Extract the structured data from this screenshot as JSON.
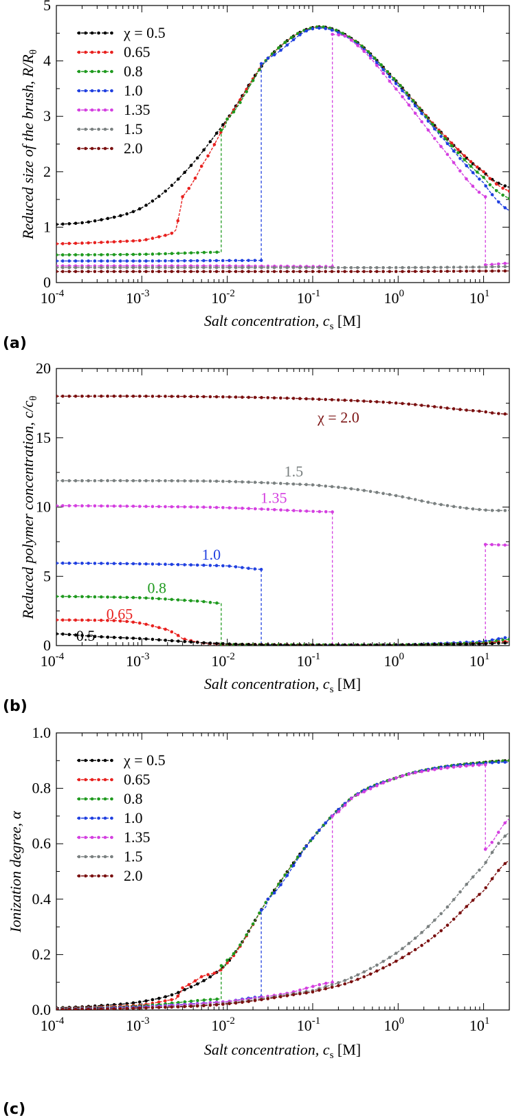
{
  "colors": {
    "0.5": "#000000",
    "0.65": "#e8211f",
    "0.8": "#1f9a1f",
    "1.0": "#2040e0",
    "1.35": "#d43fe0",
    "1.5": "#7a8080",
    "2.0": "#7a1010"
  },
  "x_tick_labels": [
    "10",
    "10",
    "10",
    "10",
    "10"
  ],
  "x_tick_exponents": [
    "-4",
    "-3",
    "-2",
    "-1",
    "0",
    "1"
  ],
  "xlabel": {
    "main": "Salt concentration, ",
    "var": "c",
    "sub": "s",
    "unit": " [M]"
  },
  "chart_data": [
    {
      "panel": "(a)",
      "type": "line",
      "xscale": "log",
      "xlim": [
        0.0001,
        20
      ],
      "ylim": [
        0,
        5
      ],
      "yticks": [
        "0",
        "1",
        "2",
        "3",
        "4",
        "5"
      ],
      "ylabel": "Reduced size of the brush, R/R",
      "ylabel_sub": "θ",
      "legend": [
        "χ = 0.5",
        "0.65",
        "0.8",
        "1.0",
        "1.35",
        "1.5",
        "2.0"
      ],
      "legend_position": "top-left",
      "series": [
        {
          "name": "χ = 0.5",
          "key": "0.5",
          "x": [
            0.0001,
            0.0003,
            0.001,
            0.003,
            0.01,
            0.03,
            0.1,
            0.3,
            1,
            3,
            10,
            20
          ],
          "y": [
            1.05,
            1.12,
            1.35,
            1.95,
            2.95,
            4.05,
            4.6,
            4.38,
            3.6,
            2.75,
            2.0,
            1.72
          ]
        },
        {
          "name": "0.65",
          "key": "0.65",
          "x": [
            0.0001,
            0.001,
            0.002,
            0.0025,
            0.0028,
            0.003,
            0.005,
            0.01,
            0.03,
            0.1,
            0.3,
            1,
            3,
            10,
            20
          ],
          "y": [
            0.7,
            0.76,
            0.86,
            0.95,
            1.3,
            1.55,
            2.1,
            2.95,
            4.05,
            4.6,
            4.38,
            3.6,
            2.75,
            2.0,
            1.65
          ]
        },
        {
          "name": "0.8",
          "key": "0.8",
          "segments": [
            {
              "x": [
                0.0001,
                0.001,
                0.0085
              ],
              "y": [
                0.5,
                0.51,
                0.55
              ]
            },
            {
              "x": [
                0.0085,
                0.01,
                0.03,
                0.1,
                0.3,
                1,
                3,
                10,
                20
              ],
              "y": [
                2.75,
                2.95,
                4.05,
                4.6,
                4.38,
                3.6,
                2.72,
                1.9,
                1.52
              ]
            }
          ],
          "jumps": [
            0.0085
          ]
        },
        {
          "name": "1.0",
          "key": "1.0",
          "segments": [
            {
              "x": [
                0.0001,
                0.001,
                0.025
              ],
              "y": [
                0.39,
                0.39,
                0.4
              ]
            },
            {
              "x": [
                0.025,
                0.03,
                0.1,
                0.3,
                1,
                3,
                10,
                20
              ],
              "y": [
                3.95,
                4.05,
                4.58,
                4.35,
                3.55,
                2.68,
                1.8,
                1.3
              ]
            }
          ],
          "jumps": [
            0.025
          ]
        },
        {
          "name": "1.35",
          "key": "1.35",
          "segments": [
            {
              "x": [
                0.0001,
                0.01,
                0.17
              ],
              "y": [
                0.3,
                0.3,
                0.29
              ]
            },
            {
              "x": [
                0.17,
                0.3,
                1,
                3,
                10.5
              ],
              "y": [
                4.48,
                4.33,
                3.45,
                2.5,
                1.55
              ]
            },
            {
              "x": [
                10.5,
                20
              ],
              "y": [
                0.32,
                0.35
              ]
            }
          ],
          "jumps": [
            0.17,
            10.5
          ]
        },
        {
          "name": "1.5",
          "key": "1.5",
          "x": [
            0.0001,
            0.01,
            0.1,
            1,
            10,
            20
          ],
          "y": [
            0.27,
            0.27,
            0.27,
            0.27,
            0.28,
            0.29
          ]
        },
        {
          "name": "2.0",
          "key": "2.0",
          "x": [
            0.0001,
            0.01,
            1,
            20
          ],
          "y": [
            0.2,
            0.2,
            0.2,
            0.21
          ]
        }
      ]
    },
    {
      "panel": "(b)",
      "type": "line",
      "xscale": "log",
      "xlim": [
        0.0001,
        20
      ],
      "ylim": [
        0,
        20
      ],
      "yticks": [
        "0",
        "5",
        "10",
        "15",
        "20"
      ],
      "ylabel": "Reduced polymer concentration, c/c",
      "ylabel_sub": "θ",
      "inline_labels": [
        {
          "text": "χ = 2.0",
          "key": "2.0",
          "x": 0.2,
          "y": 16.1
        },
        {
          "text": "1.5",
          "key": "1.5",
          "x": 0.06,
          "y": 12.2
        },
        {
          "text": "1.35",
          "key": "1.35",
          "x": 0.035,
          "y": 10.3
        },
        {
          "text": "1.0",
          "key": "1.0",
          "x": 0.0065,
          "y": 6.2
        },
        {
          "text": "0.8",
          "key": "0.8",
          "x": 0.0015,
          "y": 3.8
        },
        {
          "text": "0.65",
          "key": "0.65",
          "x": 0.00055,
          "y": 1.9
        },
        {
          "text": "0.5",
          "key": "0.5",
          "x": 0.00022,
          "y": 0.35
        }
      ],
      "series": [
        {
          "name": "2.0",
          "key": "2.0",
          "x": [
            0.0001,
            0.001,
            0.01,
            0.1,
            1,
            10,
            20
          ],
          "y": [
            18.0,
            18.0,
            17.95,
            17.8,
            17.5,
            16.9,
            16.7
          ]
        },
        {
          "name": "1.5",
          "key": "1.5",
          "x": [
            0.0001,
            0.001,
            0.01,
            0.1,
            0.3,
            1,
            3,
            10,
            20
          ],
          "y": [
            11.9,
            11.9,
            11.85,
            11.6,
            11.3,
            10.8,
            10.2,
            9.8,
            9.75
          ]
        },
        {
          "name": "1.35",
          "key": "1.35",
          "segments": [
            {
              "x": [
                0.0001,
                0.001,
                0.01,
                0.17
              ],
              "y": [
                10.1,
                10.05,
                9.95,
                9.65
              ]
            },
            {
              "x": [
                0.17,
                1,
                10.5
              ],
              "y": [
                0.05,
                0.06,
                0.15
              ]
            },
            {
              "x": [
                10.5,
                20
              ],
              "y": [
                7.3,
                7.25
              ]
            }
          ],
          "jumps": [
            0.17,
            10.5
          ]
        },
        {
          "name": "1.0",
          "key": "1.0",
          "segments": [
            {
              "x": [
                0.0001,
                0.001,
                0.01,
                0.025
              ],
              "y": [
                5.95,
                5.9,
                5.75,
                5.5
              ]
            },
            {
              "x": [
                0.025,
                0.1,
                1,
                10,
                20
              ],
              "y": [
                0.06,
                0.05,
                0.05,
                0.3,
                0.6
              ]
            }
          ],
          "jumps": [
            0.025
          ]
        },
        {
          "name": "0.8",
          "key": "0.8",
          "segments": [
            {
              "x": [
                0.0001,
                0.001,
                0.005,
                0.0085
              ],
              "y": [
                3.55,
                3.45,
                3.2,
                3.05
              ]
            },
            {
              "x": [
                0.0085,
                0.1,
                1,
                10,
                20
              ],
              "y": [
                0.08,
                0.05,
                0.05,
                0.2,
                0.45
              ]
            }
          ],
          "jumps": [
            0.0085
          ]
        },
        {
          "name": "0.65",
          "key": "0.65",
          "x": [
            0.0001,
            0.0005,
            0.001,
            0.002,
            0.0025,
            0.003,
            0.005,
            0.01,
            0.1,
            1,
            10,
            20
          ],
          "y": [
            1.85,
            1.8,
            1.6,
            1.15,
            0.85,
            0.5,
            0.2,
            0.1,
            0.05,
            0.05,
            0.15,
            0.3
          ]
        },
        {
          "name": "0.5",
          "key": "0.5",
          "x": [
            0.0001,
            0.0003,
            0.001,
            0.003,
            0.01,
            0.03,
            0.1,
            1,
            10,
            20
          ],
          "y": [
            0.85,
            0.65,
            0.5,
            0.3,
            0.12,
            0.06,
            0.04,
            0.05,
            0.12,
            0.2
          ]
        }
      ]
    },
    {
      "panel": "(c)",
      "type": "line",
      "xscale": "log",
      "xlim": [
        0.0001,
        20
      ],
      "ylim": [
        0,
        1.0
      ],
      "yticks": [
        "0.0",
        "0.2",
        "0.4",
        "0.6",
        "0.8",
        "1.0"
      ],
      "ylabel": "Ionization degree, α",
      "legend": [
        "χ = 0.5",
        "0.65",
        "0.8",
        "1.0",
        "1.35",
        "1.5",
        "2.0"
      ],
      "legend_position": "top-left",
      "series": [
        {
          "name": "χ = 0.5",
          "key": "0.5",
          "x": [
            0.0001,
            0.0003,
            0.001,
            0.003,
            0.01,
            0.03,
            0.1,
            0.3,
            1,
            3,
            10,
            20
          ],
          "y": [
            0.008,
            0.015,
            0.03,
            0.07,
            0.17,
            0.4,
            0.62,
            0.77,
            0.84,
            0.875,
            0.893,
            0.9
          ]
        },
        {
          "name": "0.65",
          "key": "0.65",
          "x": [
            0.0001,
            0.001,
            0.0025,
            0.0028,
            0.003,
            0.005,
            0.01,
            0.03,
            0.1,
            0.3,
            1,
            3,
            10,
            20
          ],
          "y": [
            0.006,
            0.018,
            0.04,
            0.06,
            0.08,
            0.12,
            0.17,
            0.4,
            0.62,
            0.77,
            0.84,
            0.875,
            0.893,
            0.9
          ]
        },
        {
          "name": "0.8",
          "key": "0.8",
          "segments": [
            {
              "x": [
                0.0001,
                0.001,
                0.0085
              ],
              "y": [
                0.005,
                0.015,
                0.04
              ]
            },
            {
              "x": [
                0.0085,
                0.01,
                0.03,
                0.1,
                0.3,
                1,
                3,
                10,
                20
              ],
              "y": [
                0.16,
                0.18,
                0.4,
                0.62,
                0.77,
                0.84,
                0.875,
                0.893,
                0.9
              ]
            }
          ],
          "jumps": [
            0.0085
          ]
        },
        {
          "name": "1.0",
          "key": "1.0",
          "segments": [
            {
              "x": [
                0.0001,
                0.001,
                0.01,
                0.025
              ],
              "y": [
                0.004,
                0.012,
                0.03,
                0.048
              ]
            },
            {
              "x": [
                0.025,
                0.03,
                0.1,
                0.3,
                1,
                3,
                10,
                20
              ],
              "y": [
                0.36,
                0.4,
                0.62,
                0.77,
                0.84,
                0.875,
                0.89,
                0.895
              ]
            }
          ],
          "jumps": [
            0.025
          ]
        },
        {
          "name": "1.35",
          "key": "1.35",
          "segments": [
            {
              "x": [
                0.0001,
                0.001,
                0.01,
                0.05,
                0.17
              ],
              "y": [
                0.003,
                0.01,
                0.03,
                0.06,
                0.1
              ]
            },
            {
              "x": [
                0.17,
                0.3,
                1,
                3,
                10.5
              ],
              "y": [
                0.7,
                0.77,
                0.84,
                0.87,
                0.885
              ]
            },
            {
              "x": [
                10.5,
                20
              ],
              "y": [
                0.58,
                0.69
              ]
            }
          ],
          "jumps": [
            0.17,
            10.5
          ]
        },
        {
          "name": "1.5",
          "key": "1.5",
          "x": [
            0.0001,
            0.001,
            0.01,
            0.1,
            0.3,
            1,
            3,
            10,
            20
          ],
          "y": [
            0.003,
            0.008,
            0.025,
            0.07,
            0.12,
            0.21,
            0.34,
            0.52,
            0.64
          ]
        },
        {
          "name": "2.0",
          "key": "2.0",
          "x": [
            0.0001,
            0.001,
            0.01,
            0.1,
            0.3,
            1,
            3,
            10,
            20
          ],
          "y": [
            0.002,
            0.007,
            0.022,
            0.065,
            0.105,
            0.18,
            0.28,
            0.43,
            0.54
          ]
        }
      ]
    }
  ]
}
